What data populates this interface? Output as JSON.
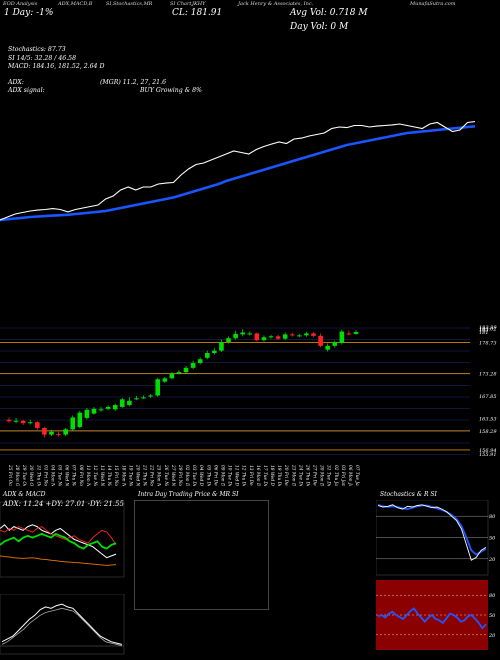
{
  "header": {
    "line1": [
      "EOD Analysis",
      "ADX,MACD,B",
      "SI,Stochastics,MR",
      "SI Chart",
      "JKHY",
      "Jack Henry & Associates, Inc.",
      "MunafaSutra.com"
    ],
    "symbol": "JKHY",
    "day_change": "1 Day: -1%",
    "close_label": "CL: 181.91",
    "avg_vol": "Avg Vol: 0.718  M",
    "day_vol": "Day Vol: 0  M",
    "full_company": "Jack Henry & Associates, Inc."
  },
  "indicators": {
    "stochastics": "Stochastics: 87.73",
    "si": "SI 14/5: 32.28 / 46.58",
    "macd": "MACD: 184.16, 181.52, 2.64  D",
    "adx": "ADX:",
    "mgr": "(MGR) 11.2,  27,  21.6",
    "adx_signal": "ADX  signal:",
    "buy": "BUY Growing & 8%"
  },
  "colors": {
    "up": "#00dd00",
    "down": "#ff2222",
    "ema": "#1a55ff",
    "price_line": "#ffffff",
    "level": "#cc8800",
    "grid": "#333399"
  },
  "chart_data": [
    {
      "type": "line",
      "series": [
        {
          "values": [
            130,
            132,
            134,
            135,
            136,
            136.6,
            137,
            137.6,
            137,
            135.4,
            137,
            138,
            139,
            140,
            144,
            146,
            150,
            152,
            150,
            152,
            152,
            154,
            154.6,
            155,
            160,
            164,
            167,
            168,
            170,
            172,
            174,
            176,
            175,
            174,
            177,
            179,
            180.6,
            182,
            181,
            184,
            184.6,
            186,
            187,
            188,
            191,
            192,
            191.6,
            193,
            193,
            192,
            192.6,
            193,
            193.4,
            194,
            193,
            192,
            191,
            194,
            195,
            192,
            189,
            190,
            195,
            195.6
          ]
        },
        {
          "values": [
            130,
            130.5,
            131,
            131.5,
            132,
            132.3,
            132.6,
            132.9,
            133.2,
            133.5,
            134,
            134.5,
            135,
            135.5,
            136,
            137,
            138,
            139,
            140,
            141,
            142,
            143,
            144,
            145,
            146.5,
            148,
            149.5,
            151,
            152.5,
            154,
            156,
            157.5,
            159,
            160.5,
            162,
            163.5,
            165,
            166.5,
            168,
            169.5,
            171,
            172.5,
            174,
            175.5,
            177,
            178.5,
            180,
            181,
            182,
            183,
            184,
            185,
            186,
            187,
            188,
            188.5,
            189,
            189.5,
            190,
            190.5,
            191,
            191.5,
            192,
            192.5
          ]
        }
      ]
    },
    {
      "type": "candlestick",
      "categories": [
        "25 Fri Oct",
        "28 Mon Oct",
        "29 Tue Oct",
        "30 Wed Oct",
        "31 Thu Oct",
        "01 Fri Nov",
        "04 Mon Nov",
        "05 Tue Nov",
        "06 Wed Nov",
        "07 Thu Nov",
        "08 Fri Nov",
        "11 Mon Nov",
        "12 Tue Nov",
        "13 Wed Nov",
        "14 Thu Nov",
        "15 Fri Nov",
        "18 Mon Nov",
        "19 Tue Nov",
        "20 Wed Nov",
        "21 Thu Nov",
        "22 Fri Nov",
        "25 Mon Nov",
        "26 Tue Nov",
        "27 Wed Nov",
        "29 Fri Nov",
        "02 Mon Dec",
        "03 Tue Dec",
        "04 Wed Dec",
        "05 Thu Dec",
        "06 Fri Dec",
        "09 Mon Dec",
        "10 Tue Dec",
        "11 Wed Dec",
        "12 Thu Dec",
        "13 Fri Dec",
        "16 Mon Dec",
        "17 Tue Dec",
        "18 Wed Dec",
        "19 Thu Dec",
        "20 Fri Dec",
        "23 Mon Dec",
        "24 Tue Dec",
        "26 Thu Dec",
        "27 Fri Dec",
        "30 Mon Dec",
        "31 Tue Dec",
        "02 Thu Jan",
        "03 Fri Jan",
        "06 Mon Jan",
        "07 Tue Jan"
      ],
      "open": [
        163.5,
        163.2,
        163.3,
        162.8,
        163.0,
        161.8,
        160.4,
        160.5,
        160.4,
        161.5,
        162.0,
        163.9,
        164.8,
        165.6,
        165.8,
        165.7,
        166.2,
        166.6,
        167.8,
        168.2,
        168.4,
        168.6,
        171.5,
        172.2,
        173.2,
        173.5,
        174.4,
        175.4,
        176.5,
        177.5,
        178.0,
        179.8,
        180.6,
        181.4,
        181.5,
        181.6,
        180.2,
        180.8,
        181.0,
        180.5,
        181.4,
        181.2,
        181.2,
        181.6,
        181.1,
        178.2,
        179.0,
        179.6,
        181.6,
        181.5
      ],
      "close": [
        163.2,
        163.3,
        162.8,
        163.0,
        161.8,
        160.4,
        161.0,
        160.4,
        161.5,
        164.0,
        165.0,
        165.6,
        165.8,
        165.7,
        166.2,
        166.6,
        167.8,
        167.5,
        168.0,
        168.2,
        168.6,
        172.0,
        172.2,
        173.2,
        173.5,
        174.4,
        175.4,
        176.2,
        177.5,
        178.0,
        179.8,
        180.6,
        181.5,
        181.8,
        181.6,
        180.2,
        180.8,
        181.0,
        180.5,
        181.4,
        181.2,
        181.2,
        181.6,
        181.1,
        179.0,
        179.0,
        179.8,
        182.0,
        181.5,
        181.9
      ],
      "high": [
        164.0,
        163.9,
        163.5,
        163.5,
        163.2,
        162.0,
        161.4,
        161.0,
        161.8,
        164.4,
        165.4,
        166.0,
        166.2,
        166.2,
        166.5,
        166.9,
        168.1,
        168.2,
        168.5,
        168.6,
        168.9,
        172.3,
        172.5,
        173.5,
        173.9,
        174.8,
        175.9,
        176.6,
        178.0,
        178.5,
        180.3,
        181.0,
        182.2,
        182.5,
        182.0,
        181.8,
        181.2,
        181.3,
        181.3,
        181.8,
        181.8,
        181.5,
        181.9,
        181.9,
        181.6,
        179.5,
        180.1,
        182.4,
        182.2,
        182.3
      ],
      "low": [
        162.9,
        162.8,
        162.4,
        162.5,
        161.4,
        159.8,
        160.1,
        160.0,
        160.1,
        161.2,
        161.7,
        163.6,
        164.6,
        165.2,
        165.5,
        165.4,
        166.0,
        166.3,
        167.6,
        167.9,
        168.1,
        168.3,
        171.3,
        172.0,
        173.0,
        173.2,
        174.1,
        175.1,
        176.2,
        177.2,
        177.7,
        179.5,
        180.3,
        181.0,
        181.2,
        179.9,
        179.9,
        180.5,
        180.2,
        180.2,
        180.9,
        180.8,
        180.9,
        180.8,
        178.7,
        177.8,
        178.6,
        179.3,
        181.2,
        181.3
      ],
      "y_labels": [
        "183.89",
        "183.02",
        "183",
        "181",
        "178.73",
        "173.28",
        "167.85",
        "163.53",
        "158.29",
        "156.94",
        "155.91"
      ],
      "y_label_prices": [
        182.9,
        182.6,
        182.4,
        181.9,
        179.7,
        173.2,
        168.5,
        163.8,
        161.2,
        157.2,
        156.3
      ],
      "level_lines": [
        179.7,
        173.2,
        161.2,
        157.2
      ]
    },
    {
      "type": "line",
      "title": "ADX  & MACD",
      "annotation": "ADX: 11.24  +DY: 27.01 -DY: 21.55",
      "series": [
        {
          "color": "#00dd00",
          "values": [
            22,
            24,
            25,
            26,
            24,
            26,
            27,
            26,
            27,
            28,
            27,
            26,
            28,
            27,
            26,
            24,
            23,
            21,
            20,
            22,
            23,
            24,
            21,
            20,
            22,
            23
          ]
        },
        {
          "color": "#ff2222",
          "values": [
            30,
            29,
            31,
            30,
            32,
            31,
            30,
            29,
            31,
            32,
            30,
            28,
            27,
            26,
            25,
            26,
            27,
            25,
            24,
            23,
            26,
            28,
            30,
            29,
            26,
            22
          ]
        },
        {
          "color": "#ffffff",
          "values": [
            31,
            33,
            30,
            32,
            31,
            30,
            32,
            33,
            32,
            30,
            29,
            28,
            30,
            31,
            29,
            27,
            25,
            24,
            23,
            22,
            21,
            19,
            17,
            15,
            16,
            17
          ]
        },
        {
          "color": "#d46a00",
          "values": [
            16,
            15.6,
            15.4,
            15,
            14.8,
            14.6,
            14.8,
            15,
            14.6,
            14.2,
            14,
            13.6,
            13.4,
            13,
            12.8,
            12.6,
            12.4,
            12.3,
            12,
            11.8,
            11.5,
            11.3,
            11,
            10.8,
            11,
            11.24
          ]
        }
      ]
    },
    {
      "type": "line",
      "series": [
        {
          "color": "#ffffff",
          "values": [
            0.6,
            0.8,
            1.0,
            1.4,
            1.8,
            2.2,
            2.5,
            2.9,
            3.1,
            3.0,
            3.2,
            3.3,
            3.1,
            3.0,
            2.6,
            2.2,
            1.8,
            1.4,
            1.0,
            0.8,
            0.6,
            0.5,
            0.4
          ]
        },
        {
          "color": "#aaaaaa",
          "values": [
            0.4,
            0.6,
            0.9,
            1.2,
            1.5,
            1.9,
            2.2,
            2.5,
            2.7,
            2.8,
            2.9,
            3.0,
            2.9,
            2.8,
            2.5,
            2.1,
            1.7,
            1.3,
            0.9,
            0.6,
            0.5,
            0.4,
            0.3
          ]
        }
      ]
    },
    {
      "type": "line",
      "title": "Intra  Day Trading Price  & MR             SI",
      "series": []
    },
    {
      "type": "line",
      "title": "Stochastics & R             SI",
      "y_labels": [
        "80",
        "50",
        "20"
      ],
      "series": [
        {
          "color": "#ffffff",
          "values": [
            95,
            93,
            94,
            96,
            92,
            90,
            94,
            93,
            95,
            96,
            94,
            92,
            93,
            90,
            86,
            80,
            74,
            62,
            40,
            18,
            22,
            32,
            36
          ]
        },
        {
          "color": "#2255ff",
          "values": [
            96,
            94,
            93,
            94,
            93,
            91,
            90,
            92,
            94,
            95,
            95,
            93,
            91,
            89,
            86,
            82,
            76,
            66,
            50,
            32,
            26,
            30,
            34
          ]
        }
      ]
    },
    {
      "type": "line",
      "y_labels": [
        "80",
        "50",
        "20"
      ],
      "series": [
        {
          "color": "#2255ff",
          "values": [
            48,
            50,
            46,
            52,
            55,
            50,
            47,
            44,
            50,
            56,
            60,
            52,
            46,
            40,
            46,
            50,
            44,
            42,
            38,
            45,
            52,
            50,
            46,
            40,
            42,
            48,
            50,
            44,
            38,
            30,
            36
          ]
        }
      ]
    }
  ]
}
